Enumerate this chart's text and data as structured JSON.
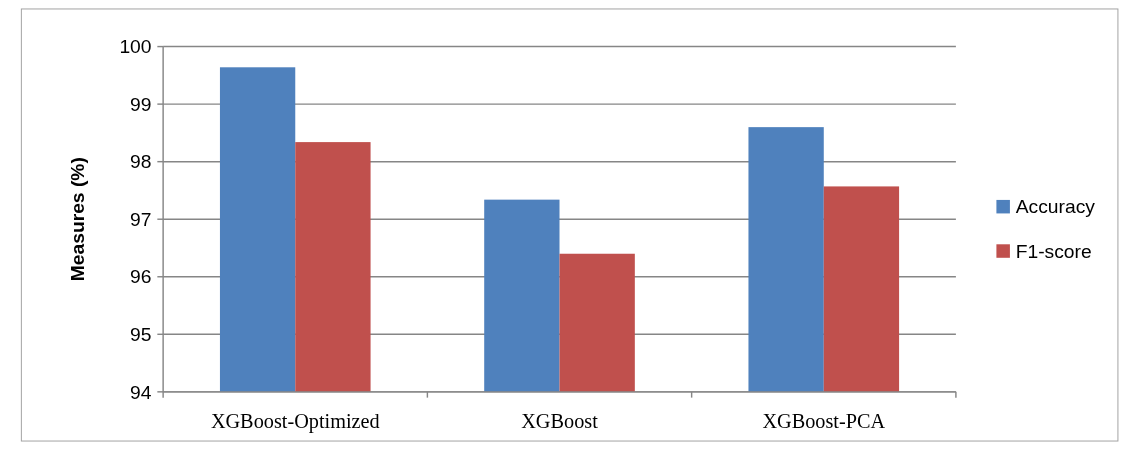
{
  "chart_data": {
    "type": "bar",
    "ylabel": "Measures (%)",
    "categories": [
      "XGBoost-Optimized",
      "XGBoost",
      "XGBoost-PCA"
    ],
    "series": [
      {
        "name": "Accuracy",
        "color": "#4f81bd",
        "values": [
          99.64,
          97.34,
          98.6
        ]
      },
      {
        "name": "F1-score",
        "color": "#c0504d",
        "values": [
          98.34,
          96.4,
          97.57
        ]
      }
    ],
    "ylim": [
      94,
      100
    ],
    "yticks": [
      94,
      95,
      96,
      97,
      98,
      99,
      100
    ],
    "grid": "y",
    "legend": "right"
  }
}
